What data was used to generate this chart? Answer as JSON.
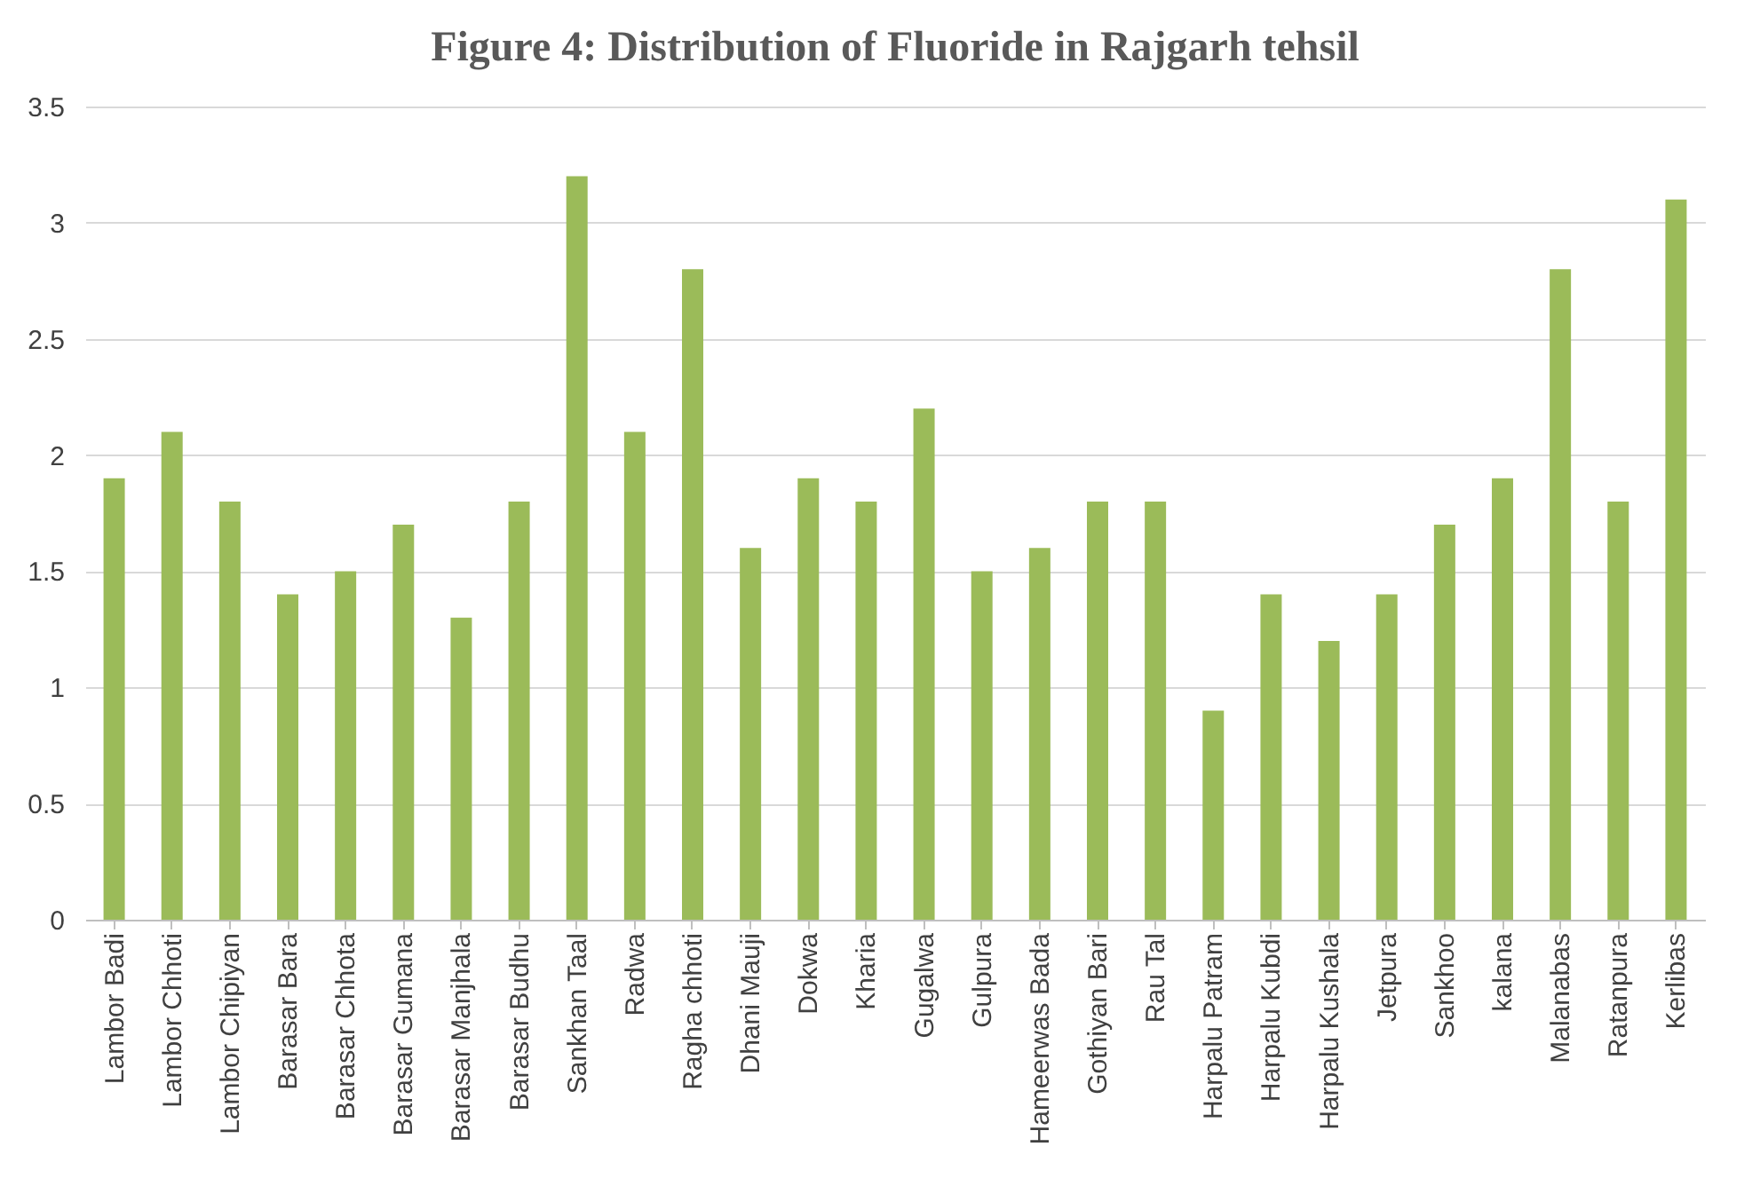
{
  "chart_data": {
    "type": "bar",
    "title": "Figure 4: Distribution of Fluoride in Rajgarh tehsil",
    "categories": [
      "Lambor Badi",
      "Lambor Chhoti",
      "Lambor Chipiyan",
      "Barasar Bara",
      "Barasar Chhota",
      "Barasar Gumana",
      "Barasar Manjhala",
      "Barasar Budhu",
      "Sankhan Taal",
      "Radwa",
      "Ragha chhoti",
      "Dhani Mauji",
      "Dokwa",
      "Kharia",
      "Gugalwa",
      "Gulpura",
      "Hameerwas Bada",
      "Gothiyan Bari",
      "Rau Tal",
      "Harpalu Patram",
      "Harpalu Kubdi",
      "Harpalu Kushala",
      "Jetpura",
      "Sankhoo",
      "kalana",
      "Malanabas",
      "Ratanpura",
      "Kerlibas"
    ],
    "values": [
      1.9,
      2.1,
      1.8,
      1.4,
      1.5,
      1.7,
      1.3,
      1.8,
      3.2,
      2.1,
      2.8,
      1.6,
      1.9,
      1.8,
      2.2,
      1.5,
      1.6,
      1.8,
      1.8,
      0.9,
      1.4,
      1.2,
      1.4,
      1.7,
      1.9,
      2.8,
      1.8,
      3.1
    ],
    "color": "#9bbb59",
    "ylim": [
      0,
      3.5
    ],
    "yticks": [
      0,
      0.5,
      1,
      1.5,
      2,
      2.5,
      3,
      3.5
    ],
    "grid": "y"
  }
}
